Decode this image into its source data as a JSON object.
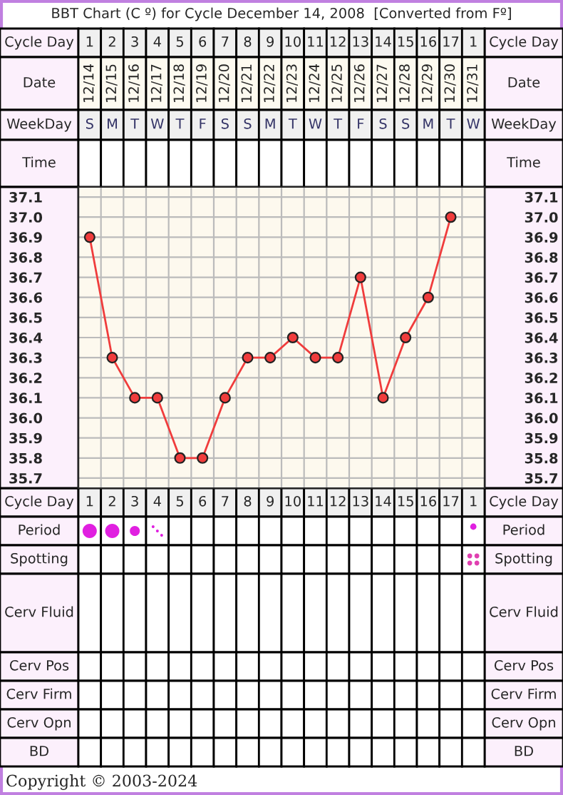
{
  "chart_data": {
    "type": "line",
    "title": "BBT Chart (C º) for Cycle December 14, 2008  [Converted from Fº]",
    "categories": [
      "12/14",
      "12/15",
      "12/16",
      "12/17",
      "12/18",
      "12/19",
      "12/20",
      "12/21",
      "12/22",
      "12/23",
      "12/24",
      "12/25",
      "12/26",
      "12/27",
      "12/28",
      "12/29",
      "12/30",
      "12/31"
    ],
    "series": [
      {
        "color": "#f03c3c",
        "values": [
          36.9,
          36.3,
          36.1,
          36.1,
          35.8,
          35.8,
          36.1,
          36.3,
          36.3,
          36.4,
          36.3,
          36.3,
          36.7,
          36.1,
          36.4,
          36.6,
          37.0,
          null
        ]
      }
    ],
    "ylim": [
      35.65,
      37.15
    ],
    "yticks": [
      {
        "value": 35.7,
        "label": "35.7"
      },
      {
        "value": 35.8,
        "label": "35.8"
      },
      {
        "value": 35.9,
        "label": "35.9"
      },
      {
        "value": 36.0,
        "label": "36.0"
      },
      {
        "value": 36.1,
        "label": "36.1"
      },
      {
        "value": 36.2,
        "label": "36.2"
      },
      {
        "value": 36.3,
        "label": "36.3"
      },
      {
        "value": 36.4,
        "label": "36.4"
      },
      {
        "value": 36.5,
        "label": "36.5"
      },
      {
        "value": 36.6,
        "label": "36.6"
      },
      {
        "value": 36.7,
        "label": "36.7"
      },
      {
        "value": 36.8,
        "label": "36.8"
      },
      {
        "value": 36.9,
        "label": "36.9"
      },
      {
        "value": 37.0,
        "label": "37.0"
      },
      {
        "value": 37.1,
        "label": "37.1"
      }
    ],
    "y2lim": [
      35.65,
      37.15
    ],
    "y2ticks": [
      {
        "value": 35.7,
        "label": "35.7"
      },
      {
        "value": 35.8,
        "label": "35.8"
      },
      {
        "value": 35.9,
        "label": "35.9"
      },
      {
        "value": 36.0,
        "label": "36.0"
      },
      {
        "value": 36.1,
        "label": "36.1"
      },
      {
        "value": 36.2,
        "label": "36.2"
      },
      {
        "value": 36.3,
        "label": "36.3"
      },
      {
        "value": 36.4,
        "label": "36.4"
      },
      {
        "value": 36.5,
        "label": "36.5"
      },
      {
        "value": 36.6,
        "label": "36.6"
      },
      {
        "value": 36.7,
        "label": "36.7"
      },
      {
        "value": 36.8,
        "label": "36.8"
      },
      {
        "value": 36.9,
        "label": "36.9"
      },
      {
        "value": 37.0,
        "label": "37.0"
      },
      {
        "value": 37.1,
        "label": "37.1"
      }
    ],
    "grid": true,
    "marker": "circle",
    "line_style": "solid",
    "legend": false,
    "annotations": [
      "Cycle Day",
      "Date",
      "WeekDay",
      "Time",
      "Period",
      "Spotting",
      "Cerv Fluid",
      "Cerv Pos",
      "Cerv Firm",
      "Cerv Opn",
      "BD",
      "1",
      "2",
      "3",
      "4",
      "5",
      "6",
      "7",
      "8",
      "9",
      "10",
      "11",
      "12",
      "13",
      "14",
      "15",
      "16",
      "17",
      "1",
      "S",
      "M",
      "T",
      "W",
      "T",
      "F",
      "S",
      "S",
      "M",
      "T",
      "W",
      "T",
      "F",
      "S",
      "S",
      "M",
      "T",
      "W",
      "Copyright © 2003-2024"
    ]
  }
}
